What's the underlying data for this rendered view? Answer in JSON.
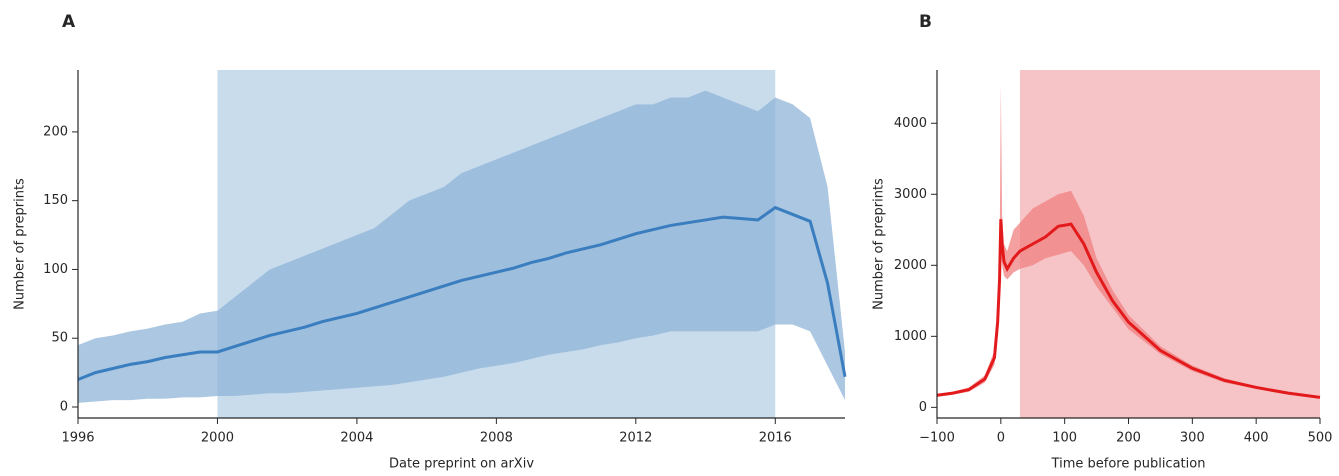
{
  "chart_data": [
    {
      "type": "line",
      "panel_label": "A",
      "xlabel": "Date preprint on arXiv",
      "ylabel": "Number of preprints",
      "x": [
        1996,
        1996.5,
        1997,
        1997.5,
        1998,
        1998.5,
        1999,
        1999.5,
        2000,
        2000.5,
        2001,
        2001.5,
        2002,
        2002.5,
        2003,
        2003.5,
        2004,
        2004.5,
        2005,
        2005.5,
        2006,
        2006.5,
        2007,
        2007.5,
        2008,
        2008.5,
        2009,
        2009.5,
        2010,
        2010.5,
        2011,
        2011.5,
        2012,
        2012.5,
        2013,
        2013.5,
        2014,
        2014.5,
        2015,
        2015.5,
        2016,
        2016.5,
        2017,
        2017.5,
        2018
      ],
      "values": [
        20,
        25,
        28,
        31,
        33,
        36,
        38,
        40,
        40,
        44,
        48,
        52,
        55,
        58,
        62,
        65,
        68,
        72,
        76,
        80,
        84,
        88,
        92,
        95,
        98,
        101,
        105,
        108,
        112,
        115,
        118,
        122,
        126,
        129,
        132,
        134,
        136,
        138,
        137,
        136,
        145,
        140,
        135,
        90,
        22
      ],
      "band_high": [
        45,
        50,
        52,
        55,
        57,
        60,
        62,
        68,
        70,
        80,
        90,
        100,
        105,
        110,
        115,
        120,
        125,
        130,
        140,
        150,
        155,
        160,
        170,
        175,
        180,
        185,
        190,
        195,
        200,
        205,
        210,
        215,
        220,
        220,
        225,
        225,
        230,
        225,
        220,
        215,
        225,
        220,
        210,
        160,
        40
      ],
      "band_low": [
        3,
        4,
        5,
        5,
        6,
        6,
        7,
        7,
        8,
        8,
        9,
        10,
        10,
        11,
        12,
        13,
        14,
        15,
        16,
        18,
        20,
        22,
        25,
        28,
        30,
        32,
        35,
        38,
        40,
        42,
        45,
        47,
        50,
        52,
        55,
        55,
        55,
        55,
        55,
        55,
        60,
        60,
        55,
        30,
        5
      ],
      "shade": [
        2000,
        2016
      ],
      "color": "#3a7ebf",
      "band_color": "#8fb4d8",
      "shade_color": "#c9dcec",
      "xlim": [
        1996,
        2018
      ],
      "xticks": [
        1996,
        2000,
        2004,
        2008,
        2012,
        2016
      ],
      "ylim": [
        -8,
        245
      ],
      "yticks": [
        0,
        50,
        100,
        150,
        200
      ]
    },
    {
      "type": "line",
      "panel_label": "B",
      "xlabel": "Time before publication",
      "ylabel": "Number of preprints",
      "x": [
        -100,
        -75,
        -50,
        -25,
        -10,
        -5,
        -2,
        0,
        2,
        5,
        10,
        20,
        30,
        50,
        70,
        90,
        110,
        130,
        150,
        175,
        200,
        250,
        300,
        350,
        400,
        450,
        500
      ],
      "values": [
        170,
        200,
        250,
        400,
        700,
        1200,
        1800,
        2650,
        2300,
        2050,
        1950,
        2100,
        2200,
        2300,
        2400,
        2550,
        2580,
        2300,
        1900,
        1500,
        1200,
        800,
        550,
        380,
        280,
        200,
        140
      ],
      "band_high": [
        190,
        220,
        280,
        450,
        800,
        1400,
        2000,
        4550,
        2700,
        2300,
        2200,
        2500,
        2600,
        2800,
        2900,
        3000,
        3050,
        2700,
        2100,
        1650,
        1300,
        860,
        590,
        410,
        300,
        215,
        150
      ],
      "band_low": [
        150,
        180,
        220,
        350,
        600,
        1000,
        1600,
        2200,
        2000,
        1850,
        1800,
        1900,
        1950,
        2000,
        2100,
        2150,
        2200,
        2000,
        1700,
        1400,
        1100,
        750,
        510,
        350,
        260,
        185,
        130
      ],
      "shade": [
        30,
        500
      ],
      "color": "#e31a1c",
      "band_color": "#f08080",
      "shade_color": "#f6c4c7",
      "xlim": [
        -100,
        500
      ],
      "xticks": [
        {
          "value": -100,
          "label": "−100"
        },
        0,
        100,
        200,
        300,
        400,
        500
      ],
      "ylim": [
        -150,
        4750
      ],
      "yticks": [
        0,
        1000,
        2000,
        3000,
        4000
      ]
    }
  ]
}
